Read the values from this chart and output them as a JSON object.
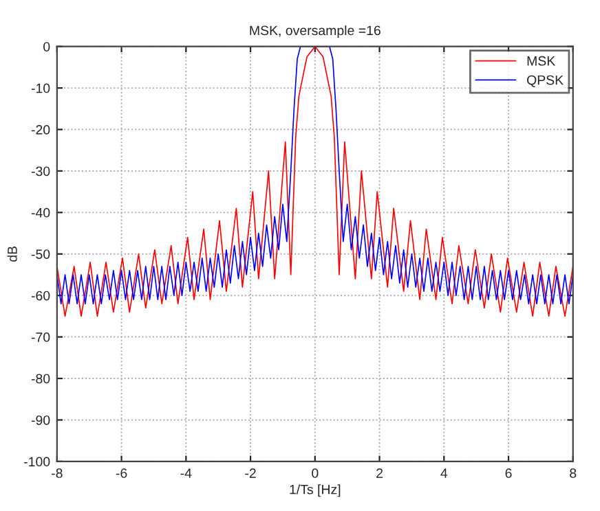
{
  "chart_data": {
    "type": "line",
    "title": "MSK, oversample =16",
    "xlabel": "1/Ts [Hz]",
    "ylabel": "dB",
    "xlim": [
      -8,
      8
    ],
    "xticks": [
      -8,
      -6,
      -4,
      -2,
      0,
      2,
      4,
      6,
      8
    ],
    "ylim": [
      -100,
      0
    ],
    "yticks": [
      -100,
      -90,
      -80,
      -70,
      -60,
      -50,
      -40,
      -30,
      -20,
      -10,
      0
    ],
    "grid": true,
    "legend": "top right",
    "line_style": "solid",
    "marker": "none",
    "series": [
      {
        "name": "MSK",
        "color": "#ff0000",
        "x": [
          -8,
          -7.75,
          -7.47,
          -7.25,
          -6.97,
          -6.75,
          -6.48,
          -6.25,
          -5.97,
          -5.75,
          -5.47,
          -5.25,
          -4.97,
          -4.75,
          -4.46,
          -4.25,
          -3.95,
          -3.75,
          -3.45,
          -3.25,
          -2.96,
          -2.75,
          -2.44,
          -2.25,
          -1.93,
          -1.75,
          -1.44,
          -1.25,
          -0.92,
          -0.75,
          -0.6,
          -0.5,
          -0.25,
          0,
          0.25,
          0.5,
          0.6,
          0.75,
          0.92,
          1.25,
          1.44,
          1.75,
          1.93,
          2.25,
          2.44,
          2.75,
          2.96,
          3.25,
          3.45,
          3.75,
          3.95,
          4.25,
          4.46,
          4.75,
          4.97,
          5.25,
          5.47,
          5.75,
          5.97,
          6.25,
          6.48,
          6.75,
          6.97,
          7.25,
          7.47,
          7.75,
          8
        ],
        "values": [
          -53,
          -65,
          -53,
          -65,
          -52,
          -65,
          -52,
          -64,
          -51,
          -64,
          -50,
          -63,
          -49,
          -62,
          -48,
          -62,
          -46,
          -61,
          -44,
          -61,
          -42,
          -59,
          -39,
          -58,
          -35,
          -56,
          -30,
          -56,
          -23,
          -55,
          -22,
          -12,
          -2.5,
          0,
          -2.5,
          -12,
          -22,
          -55,
          -23,
          -56,
          -30,
          -56,
          -35,
          -58,
          -39,
          -59,
          -42,
          -61,
          -44,
          -61,
          -46,
          -62,
          -48,
          -62,
          -49,
          -63,
          -50,
          -64,
          -51,
          -64,
          -52,
          -65,
          -52,
          -65,
          -53,
          -65,
          -53
        ]
      },
      {
        "name": "QPSK",
        "color": "#0000ff",
        "x": [
          -8,
          -7.875,
          -7.75,
          -7.625,
          -7.5,
          -7.375,
          -7.25,
          -7.125,
          -7,
          -6.875,
          -6.75,
          -6.625,
          -6.5,
          -6.375,
          -6.25,
          -6.125,
          -6,
          -5.875,
          -5.75,
          -5.625,
          -5.5,
          -5.375,
          -5.25,
          -5.125,
          -5,
          -4.875,
          -4.75,
          -4.625,
          -4.5,
          -4.375,
          -4.25,
          -4.125,
          -4,
          -3.875,
          -3.75,
          -3.625,
          -3.5,
          -3.375,
          -3.25,
          -3.125,
          -3,
          -2.875,
          -2.75,
          -2.625,
          -2.5,
          -2.375,
          -2.25,
          -2.125,
          -2,
          -1.875,
          -1.75,
          -1.625,
          -1.5,
          -1.375,
          -1.25,
          -1.125,
          -1,
          -0.875,
          -0.75,
          -0.65,
          -0.55,
          -0.45,
          0.45,
          0.55,
          0.65,
          0.75,
          0.875,
          1,
          1.125,
          1.25,
          1.375,
          1.5,
          1.625,
          1.75,
          1.875,
          2,
          2.125,
          2.25,
          2.375,
          2.5,
          2.625,
          2.75,
          2.875,
          3,
          3.125,
          3.25,
          3.375,
          3.5,
          3.625,
          3.75,
          3.875,
          4,
          4.125,
          4.25,
          4.375,
          4.5,
          4.625,
          4.75,
          4.875,
          5,
          5.125,
          5.25,
          5.375,
          5.5,
          5.625,
          5.75,
          5.875,
          6,
          6.125,
          6.25,
          6.375,
          6.5,
          6.625,
          6.75,
          6.875,
          7,
          7.125,
          7.25,
          7.375,
          7.5,
          7.625,
          7.75,
          7.875,
          8
        ],
        "values": [
          -55,
          -62,
          -55,
          -62,
          -55,
          -62,
          -55,
          -62,
          -55,
          -62,
          -55,
          -62,
          -55,
          -61,
          -54,
          -61,
          -54,
          -61,
          -54,
          -61,
          -54,
          -61,
          -53,
          -61,
          -53,
          -61,
          -53,
          -61,
          -53,
          -60,
          -52,
          -60,
          -52,
          -59,
          -52,
          -59,
          -51,
          -59,
          -51,
          -58,
          -50,
          -58,
          -49,
          -57,
          -48,
          -56,
          -47,
          -55,
          -46,
          -54,
          -45,
          -53,
          -43,
          -51,
          -41,
          -49,
          -38,
          -47,
          -30,
          -15,
          -3,
          0,
          0,
          -3,
          -15,
          -30,
          -47,
          -38,
          -49,
          -41,
          -51,
          -43,
          -53,
          -45,
          -54,
          -46,
          -55,
          -47,
          -56,
          -48,
          -57,
          -49,
          -58,
          -50,
          -58,
          -51,
          -59,
          -51,
          -59,
          -52,
          -59,
          -52,
          -60,
          -52,
          -60,
          -53,
          -61,
          -53,
          -61,
          -53,
          -61,
          -53,
          -61,
          -54,
          -61,
          -54,
          -61,
          -54,
          -61,
          -54,
          -61,
          -55,
          -62,
          -55,
          -62,
          -55,
          -62,
          -55,
          -62,
          -55,
          -62,
          -55,
          -62,
          -55
        ]
      }
    ]
  }
}
